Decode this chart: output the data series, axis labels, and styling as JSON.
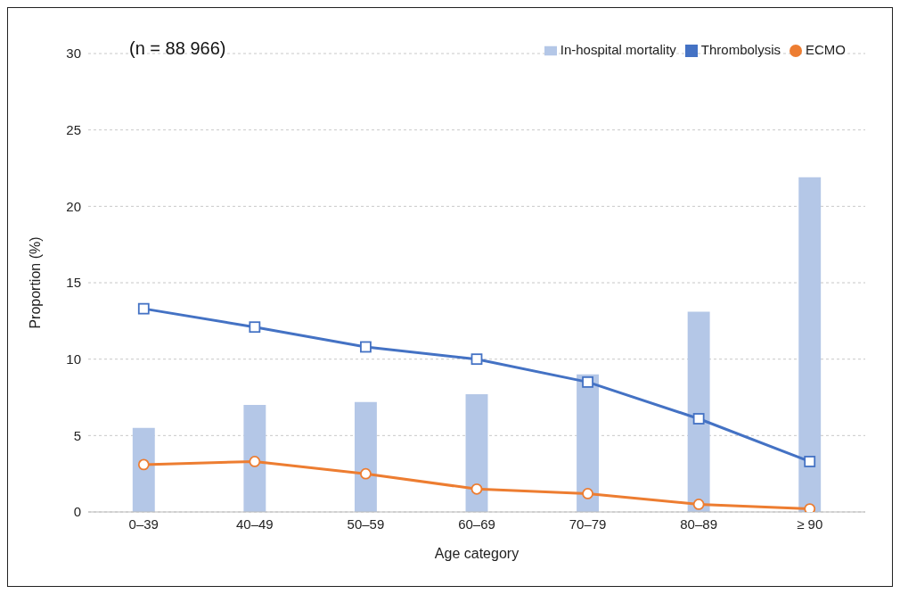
{
  "chart_data": {
    "type": "bar",
    "xlabel": "Age category",
    "ylabel": "Proportion (%)",
    "categories": [
      "0–39",
      "40–49",
      "50–59",
      "60–69",
      "70–79",
      "80–89",
      "≥ 90"
    ],
    "series": [
      {
        "name": "In-hospital mortality",
        "type": "bar",
        "color": "#b4c7e7",
        "values": [
          5.5,
          7.0,
          7.2,
          7.7,
          9.0,
          13.1,
          21.9
        ]
      },
      {
        "name": "Thrombolysis",
        "type": "line",
        "color": "#4472c4",
        "marker": "square",
        "values": [
          13.3,
          12.1,
          10.8,
          10.0,
          8.5,
          6.1,
          3.3
        ]
      },
      {
        "name": "ECMO",
        "type": "line",
        "color": "#ed7d31",
        "marker": "circle",
        "values": [
          3.1,
          3.3,
          2.5,
          1.5,
          1.2,
          0.5,
          0.2
        ]
      }
    ],
    "ylim": [
      0,
      30
    ],
    "yticks": [
      0,
      5,
      10,
      15,
      20,
      25,
      30
    ],
    "grid": "y",
    "legend": "top right",
    "annotations": [
      "(n = 88 966)"
    ]
  }
}
